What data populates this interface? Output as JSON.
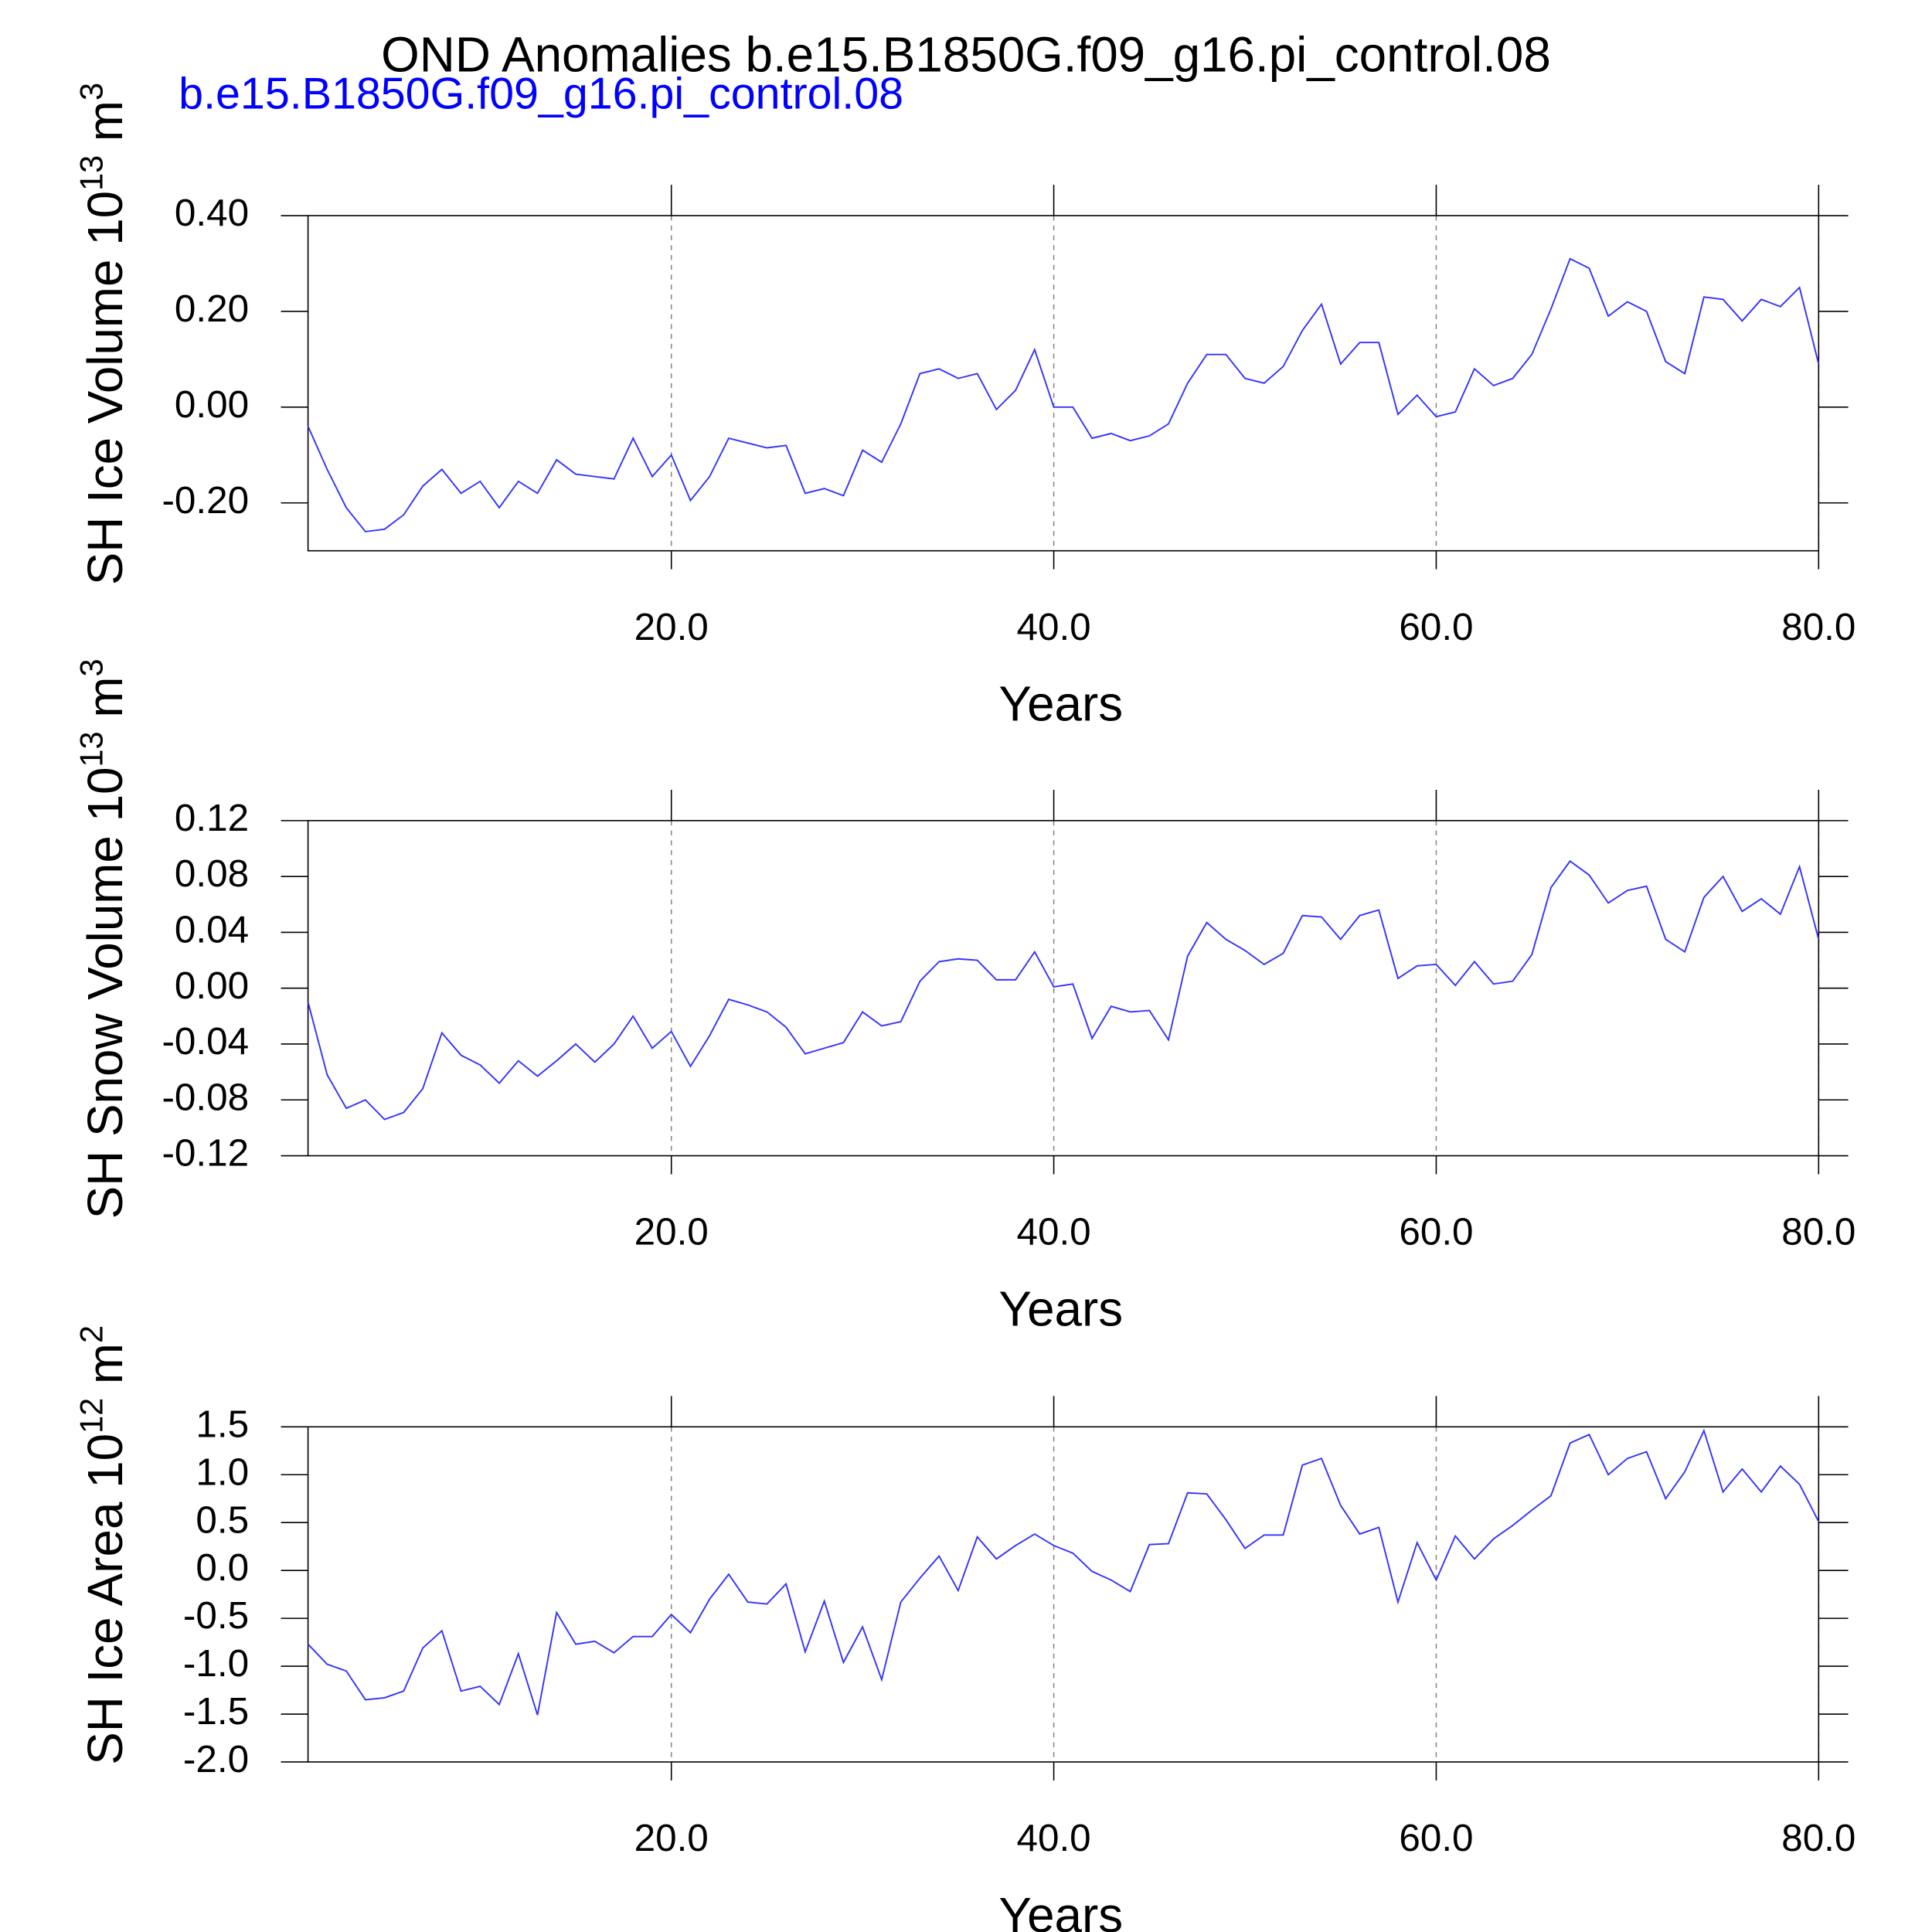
{
  "chart_data": [
    {
      "type": "line",
      "title": "OND Anomalies b.e15.B1850G.f09_g16.pi_control.08",
      "subtitle": "b.e15.B1850G.f09_g16.pi_control.08",
      "xlabel": "Years",
      "ylabel": {
        "text": "SH Ice Volume 10",
        "exponent": "13",
        "unit": " m",
        "unit_exponent": "3"
      },
      "xlim": [
        1,
        80
      ],
      "xticks": [
        {
          "value": 20,
          "label": "20.0"
        },
        {
          "value": 40,
          "label": "40.0"
        },
        {
          "value": 60,
          "label": "60.0"
        },
        {
          "value": 80,
          "label": "80.0"
        }
      ],
      "xgrid": true,
      "ylim": [
        -0.3,
        0.4
      ],
      "yticks": [
        {
          "value": 0.4,
          "label": "0.40"
        },
        {
          "value": 0.2,
          "label": "0.20"
        },
        {
          "value": 0,
          "label": "0.00"
        },
        {
          "value": -0.2,
          "label": "-0.20"
        }
      ],
      "color": "#3333ff",
      "x": [
        1,
        2,
        3,
        4,
        5,
        6,
        7,
        8,
        9,
        10,
        11,
        12,
        13,
        14,
        15,
        16,
        17,
        18,
        19,
        20,
        21,
        22,
        23,
        24,
        25,
        26,
        27,
        28,
        29,
        30,
        31,
        32,
        33,
        34,
        35,
        36,
        37,
        38,
        39,
        40,
        41,
        42,
        43,
        44,
        45,
        46,
        47,
        48,
        49,
        50,
        51,
        52,
        53,
        54,
        55,
        56,
        57,
        58,
        59,
        60,
        61,
        62,
        63,
        64,
        65,
        66,
        67,
        68,
        69,
        70,
        71,
        72,
        73,
        74,
        75,
        76,
        77,
        78,
        79,
        80
      ],
      "values": [
        -0.04,
        -0.13,
        -0.21,
        -0.26,
        -0.255,
        -0.225,
        -0.165,
        -0.13,
        -0.18,
        -0.155,
        -0.21,
        -0.155,
        -0.18,
        -0.11,
        -0.14,
        -0.145,
        -0.15,
        -0.065,
        -0.145,
        -0.1,
        -0.195,
        -0.145,
        -0.065,
        -0.075,
        -0.085,
        -0.08,
        -0.18,
        -0.17,
        -0.185,
        -0.09,
        -0.115,
        -0.035,
        0.07,
        0.08,
        0.06,
        0.07,
        -0.005,
        0.035,
        0.12,
        0,
        0,
        -0.065,
        -0.055,
        -0.07,
        -0.06,
        -0.035,
        0.05,
        0.11,
        0.11,
        0.06,
        0.05,
        0.085,
        0.16,
        0.215,
        0.09,
        0.135,
        0.135,
        -0.015,
        0.025,
        -0.02,
        -0.01,
        0.08,
        0.045,
        0.06,
        0.11,
        0.205,
        0.31,
        0.29,
        0.19,
        0.22,
        0.2,
        0.095,
        0.07,
        0.23,
        0.225,
        0.18,
        0.225,
        0.21,
        0.25,
        0.09
      ]
    },
    {
      "type": "line",
      "xlabel": "Years",
      "ylabel": {
        "text": "SH Snow Volume 10",
        "exponent": "13",
        "unit": " m",
        "unit_exponent": "3"
      },
      "xlim": [
        1,
        80
      ],
      "xticks": [
        {
          "value": 20,
          "label": "20.0"
        },
        {
          "value": 40,
          "label": "40.0"
        },
        {
          "value": 60,
          "label": "60.0"
        },
        {
          "value": 80,
          "label": "80.0"
        }
      ],
      "xgrid": true,
      "ylim": [
        -0.12,
        0.12
      ],
      "yticks": [
        0.12,
        0.08,
        0.04,
        {
          "value": 0,
          "label": "0.00"
        },
        -0.04,
        -0.08,
        -0.12
      ],
      "color": "#3333ff",
      "x": [
        1,
        2,
        3,
        4,
        5,
        6,
        7,
        8,
        9,
        10,
        11,
        12,
        13,
        14,
        15,
        16,
        17,
        18,
        19,
        20,
        21,
        22,
        23,
        24,
        25,
        26,
        27,
        28,
        29,
        30,
        31,
        32,
        33,
        34,
        35,
        36,
        37,
        38,
        39,
        40,
        41,
        42,
        43,
        44,
        45,
        46,
        47,
        48,
        49,
        50,
        51,
        52,
        53,
        54,
        55,
        56,
        57,
        58,
        59,
        60,
        61,
        62,
        63,
        64,
        65,
        66,
        67,
        68,
        69,
        70,
        71,
        72,
        73,
        74,
        75,
        76,
        77,
        78,
        79,
        80
      ],
      "values": [
        -0.01,
        -0.062,
        -0.086,
        -0.08,
        -0.094,
        -0.089,
        -0.072,
        -0.032,
        -0.048,
        -0.055,
        -0.068,
        -0.052,
        -0.063,
        -0.052,
        -0.04,
        -0.053,
        -0.04,
        -0.02,
        -0.043,
        -0.031,
        -0.056,
        -0.034,
        -0.008,
        -0.012,
        -0.017,
        -0.028,
        -0.047,
        -0.043,
        -0.039,
        -0.017,
        -0.027,
        -0.024,
        0.005,
        0.019,
        0.021,
        0.02,
        0.006,
        0.006,
        0.026,
        0.001,
        0.003,
        -0.036,
        -0.013,
        -0.017,
        -0.016,
        -0.037,
        0.023,
        0.047,
        0.035,
        0.027,
        0.017,
        0.025,
        0.052,
        0.051,
        0.035,
        0.052,
        0.056,
        0.007,
        0.016,
        0.017,
        0.002,
        0.019,
        0.003,
        0.005,
        0.024,
        0.072,
        0.091,
        0.081,
        0.061,
        0.07,
        0.073,
        0.035,
        0.026,
        0.065,
        0.08,
        0.055,
        0.064,
        0.053,
        0.087,
        0.035
      ]
    },
    {
      "type": "line",
      "xlabel": "Years",
      "ylabel": {
        "text": "SH Ice Area 10",
        "exponent": "12",
        "unit": " m",
        "unit_exponent": "2"
      },
      "xlim": [
        1,
        80
      ],
      "xticks": [
        {
          "value": 20,
          "label": "20.0"
        },
        {
          "value": 40,
          "label": "40.0"
        },
        {
          "value": 60,
          "label": "60.0"
        },
        {
          "value": 80,
          "label": "80.0"
        }
      ],
      "xgrid": true,
      "ylim": [
        -2,
        1.5
      ],
      "yticks": [
        1.5,
        {
          "value": 1,
          "label": "1.0"
        },
        0.5,
        {
          "value": 0,
          "label": "0.0"
        },
        -0.5,
        {
          "value": -1,
          "label": "-1.0"
        },
        -1.5,
        {
          "value": -2,
          "label": "-2.0"
        }
      ],
      "color": "#3333ff",
      "x": [
        1,
        2,
        3,
        4,
        5,
        6,
        7,
        8,
        9,
        10,
        11,
        12,
        13,
        14,
        15,
        16,
        17,
        18,
        19,
        20,
        21,
        22,
        23,
        24,
        25,
        26,
        27,
        28,
        29,
        30,
        31,
        32,
        33,
        34,
        35,
        36,
        37,
        38,
        39,
        40,
        41,
        42,
        43,
        44,
        45,
        46,
        47,
        48,
        49,
        50,
        51,
        52,
        53,
        54,
        55,
        56,
        57,
        58,
        59,
        60,
        61,
        62,
        63,
        64,
        65,
        66,
        67,
        68,
        69,
        70,
        71,
        72,
        73,
        74,
        75,
        76,
        77,
        78,
        79,
        80
      ],
      "values": [
        -0.77,
        -0.98,
        -1.05,
        -1.35,
        -1.33,
        -1.26,
        -0.81,
        -0.63,
        -1.26,
        -1.21,
        -1.4,
        -0.87,
        -1.51,
        -0.44,
        -0.77,
        -0.74,
        -0.86,
        -0.69,
        -0.69,
        -0.46,
        -0.65,
        -0.3,
        -0.04,
        -0.33,
        -0.35,
        -0.14,
        -0.85,
        -0.32,
        -0.96,
        -0.59,
        -1.14,
        -0.33,
        -0.08,
        0.15,
        -0.21,
        0.35,
        0.12,
        0.26,
        0.38,
        0.26,
        0.18,
        -0.01,
        -0.1,
        -0.22,
        0.27,
        0.28,
        0.81,
        0.8,
        0.53,
        0.23,
        0.37,
        0.37,
        1.1,
        1.17,
        0.68,
        0.38,
        0.45,
        -0.33,
        0.29,
        -0.1,
        0.36,
        0.12,
        0.33,
        0.47,
        0.63,
        0.78,
        1.33,
        1.42,
        1,
        1.17,
        1.24,
        0.75,
        1.03,
        1.46,
        0.82,
        1.06,
        0.82,
        1.09,
        0.9,
        0.51
      ]
    }
  ]
}
